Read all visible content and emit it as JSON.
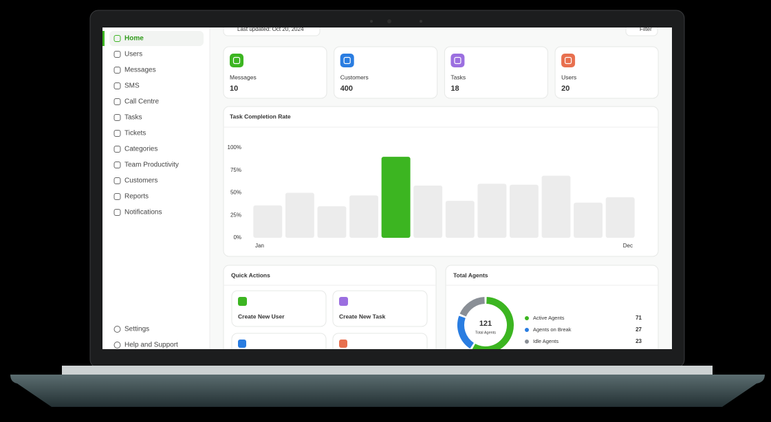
{
  "sidebar": {
    "nav": [
      "Home",
      "Users",
      "Messages",
      "SMS",
      "Call Centre",
      "Tasks",
      "Tickets",
      "Categories",
      "Team Productivity",
      "Customers",
      "Reports",
      "Notifications"
    ],
    "footer": [
      "Settings",
      "Help and Support"
    ]
  },
  "header": {
    "last_updated": "Last updated: Oct 20, 2024",
    "filter": "Filter"
  },
  "stats": [
    {
      "label": "Messages",
      "value": 10,
      "color": "#3cb521"
    },
    {
      "label": "Customers",
      "value": 400,
      "color": "#2a7de1"
    },
    {
      "label": "Tasks",
      "value": 18,
      "color": "#9b6fe0"
    },
    {
      "label": "Users",
      "value": 20,
      "color": "#e8704f"
    }
  ],
  "chart_data": {
    "type": "bar",
    "title": "Task Completion Rate",
    "categories": [
      "Jan",
      null,
      null,
      null,
      null,
      null,
      null,
      null,
      null,
      null,
      null,
      "Dec"
    ],
    "values": [
      36,
      50,
      35,
      47,
      90,
      58,
      41,
      60,
      59,
      69,
      39,
      45
    ],
    "colors": [
      "#ececec",
      "#ececec",
      "#ececec",
      "#ececec",
      "#3cb521",
      "#ececec",
      "#ececec",
      "#ececec",
      "#ececec",
      "#ececec",
      "#ececec",
      "#ececec"
    ],
    "ylim": [
      0,
      100
    ],
    "yticks": [
      {
        "value": 0,
        "label": "0%"
      },
      {
        "value": 25,
        "label": "25%"
      },
      {
        "value": 50,
        "label": "50%"
      },
      {
        "value": 75,
        "label": "75%"
      },
      {
        "value": 100,
        "label": "100%"
      }
    ]
  },
  "quick_actions": {
    "title": "Quick Actions",
    "actions": [
      {
        "label": "Create New User",
        "color": "#3cb521"
      },
      {
        "label": "Create New Task",
        "color": "#9b6fe0"
      }
    ]
  },
  "total_agents": {
    "title": "Total Agents",
    "total": 121,
    "total_label": "Total Agents",
    "legend": [
      {
        "name": "Active Agents",
        "value": 71,
        "color": "#3cb521"
      },
      {
        "name": "Agents on Break",
        "value": 27,
        "color": "#2a7de1"
      },
      {
        "name": "Idle Agents",
        "value": 23,
        "color": "#8a8f96"
      }
    ]
  }
}
